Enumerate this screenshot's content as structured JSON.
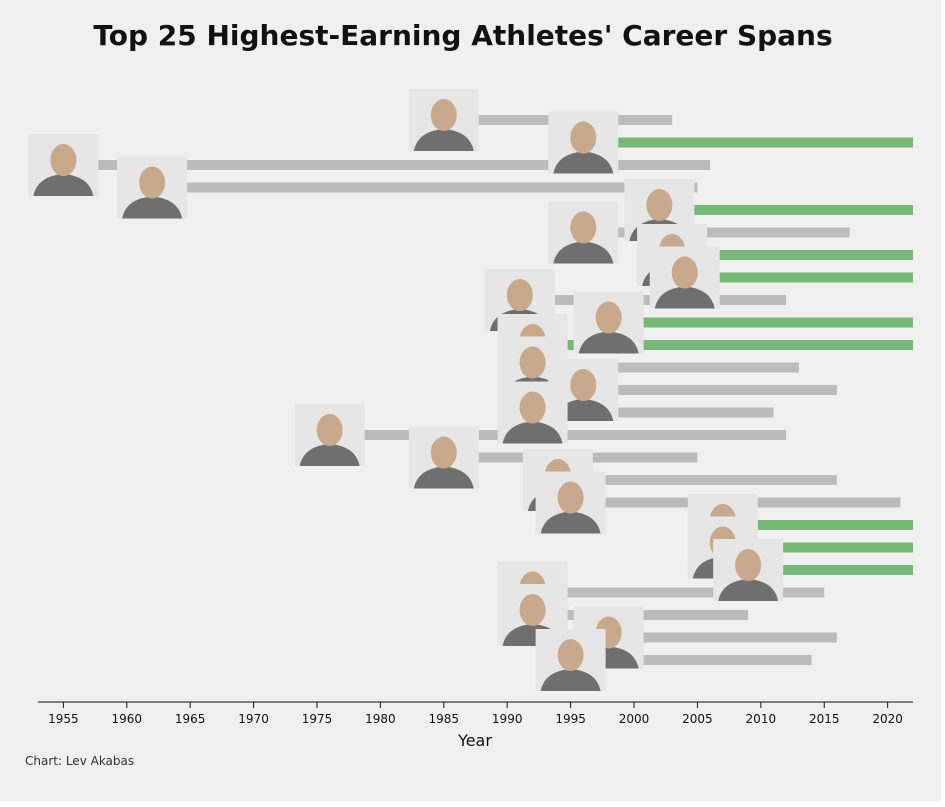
{
  "chart_data": {
    "type": "bar",
    "orientation": "horizontal-range",
    "title": "Top 25 Highest-Earning Athletes' Career Spans",
    "xlabel": "Year",
    "ylabel": "",
    "credit": "Chart: Lev Akabas",
    "xlim": [
      1953,
      2022
    ],
    "xticks": [
      1955,
      1960,
      1965,
      1970,
      1975,
      1980,
      1985,
      1990,
      1995,
      2000,
      2005,
      2010,
      2015,
      2020
    ],
    "grid": false,
    "colors": {
      "retired": "#bbbbbb",
      "active": "#77b877",
      "photo": "#c9a98c"
    },
    "series": [
      {
        "start": 1985,
        "end": 2003,
        "active": false
      },
      {
        "start": 1996,
        "end": 2022,
        "active": true
      },
      {
        "start": 1955,
        "end": 2006,
        "active": false
      },
      {
        "start": 1962,
        "end": 2005,
        "active": false
      },
      {
        "start": 2002,
        "end": 2022,
        "active": true
      },
      {
        "start": 1996,
        "end": 2017,
        "active": false
      },
      {
        "start": 2003,
        "end": 2022,
        "active": true
      },
      {
        "start": 2004,
        "end": 2022,
        "active": true
      },
      {
        "start": 1991,
        "end": 2012,
        "active": false
      },
      {
        "start": 1998,
        "end": 2022,
        "active": true
      },
      {
        "start": 1992,
        "end": 2022,
        "active": true
      },
      {
        "start": 1992,
        "end": 2013,
        "active": false
      },
      {
        "start": 1996,
        "end": 2016,
        "active": false
      },
      {
        "start": 1992,
        "end": 2011,
        "active": false
      },
      {
        "start": 1976,
        "end": 2012,
        "active": false
      },
      {
        "start": 1985,
        "end": 2005,
        "active": false
      },
      {
        "start": 1994,
        "end": 2016,
        "active": false
      },
      {
        "start": 1995,
        "end": 2021,
        "active": false
      },
      {
        "start": 2007,
        "end": 2022,
        "active": true
      },
      {
        "start": 2007,
        "end": 2022,
        "active": true
      },
      {
        "start": 2009,
        "end": 2022,
        "active": true
      },
      {
        "start": 1992,
        "end": 2015,
        "active": false
      },
      {
        "start": 1992,
        "end": 2009,
        "active": false
      },
      {
        "start": 1998,
        "end": 2016,
        "active": false
      },
      {
        "start": 1995,
        "end": 2014,
        "active": false
      }
    ]
  }
}
